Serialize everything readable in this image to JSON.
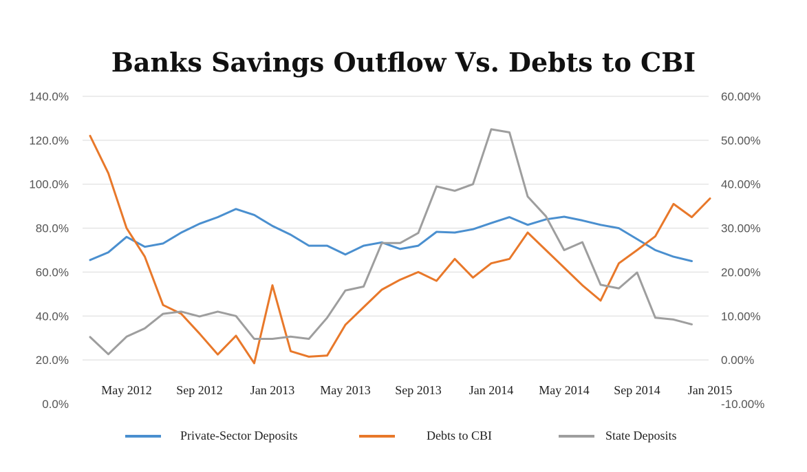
{
  "chart_data": {
    "type": "line",
    "title": "Banks Savings Outflow  Vs.  Debts to CBI",
    "xlabel": "",
    "ylabel": "",
    "x_tick_labels": [
      "May 2012",
      "Sep 2012",
      "Jan 2013",
      "May 2013",
      "Sep 2013",
      "Jan 2014",
      "May 2014",
      "Sep 2014",
      "Jan 2015"
    ],
    "x_tick_indices": [
      2,
      6,
      10,
      14,
      18,
      22,
      26,
      30,
      34
    ],
    "n_points": 37,
    "left_axis": {
      "ylim": [
        0,
        140
      ],
      "ticks": [
        0,
        20,
        40,
        60,
        80,
        100,
        120,
        140
      ],
      "tick_labels": [
        "0.0%",
        "20.0%",
        "40.0%",
        "60.0%",
        "80.0%",
        "100.0%",
        "120.0%",
        "140.0%"
      ]
    },
    "right_axis": {
      "ylim": [
        -10,
        60
      ],
      "ticks": [
        -10,
        0,
        10,
        20,
        30,
        40,
        50,
        60
      ],
      "tick_labels": [
        "-10.00%",
        "0.00%",
        "10.00%",
        "20.00%",
        "30.00%",
        "40.00%",
        "50.00%",
        "60.00%"
      ]
    },
    "grid": true,
    "legend_position": "bottom",
    "series": [
      {
        "name": "Private-Sector Deposits",
        "axis": "left",
        "color": "#4a8fcf",
        "values": [
          65.5,
          69,
          76,
          71.5,
          73,
          78,
          82,
          85,
          88.7,
          86,
          81,
          77,
          72,
          72,
          68,
          72,
          73.5,
          70.5,
          72,
          78.3,
          78,
          79.5,
          82.3,
          85,
          81.5,
          84,
          85.2,
          83.5,
          81.5,
          80,
          75,
          70,
          67,
          65
        ]
      },
      {
        "name": "Debts to CBI",
        "axis": "left",
        "color": "#e8782a",
        "values": [
          122,
          105,
          80,
          67,
          45,
          41,
          32,
          22.5,
          31,
          18.5,
          54,
          24,
          21.5,
          22,
          36,
          44,
          52,
          56.5,
          60,
          56,
          66,
          57.5,
          64,
          66,
          78,
          70,
          62,
          54,
          47,
          64,
          70,
          76.3,
          91,
          85,
          93.5
        ]
      },
      {
        "name": "State Deposits",
        "axis": "right",
        "color": "#9e9e9e",
        "values": [
          5.2,
          1.3,
          5.3,
          7.2,
          10.5,
          11,
          9.9,
          11,
          10,
          4.8,
          4.8,
          5.3,
          4.8,
          9.6,
          15.8,
          16.7,
          26.6,
          26.6,
          28.9,
          39.5,
          38.5,
          40,
          52.5,
          51.8,
          37.2,
          32.7,
          25,
          26.8,
          17.1,
          16.3,
          19.9,
          9.6,
          9.2,
          8.1
        ]
      }
    ]
  }
}
